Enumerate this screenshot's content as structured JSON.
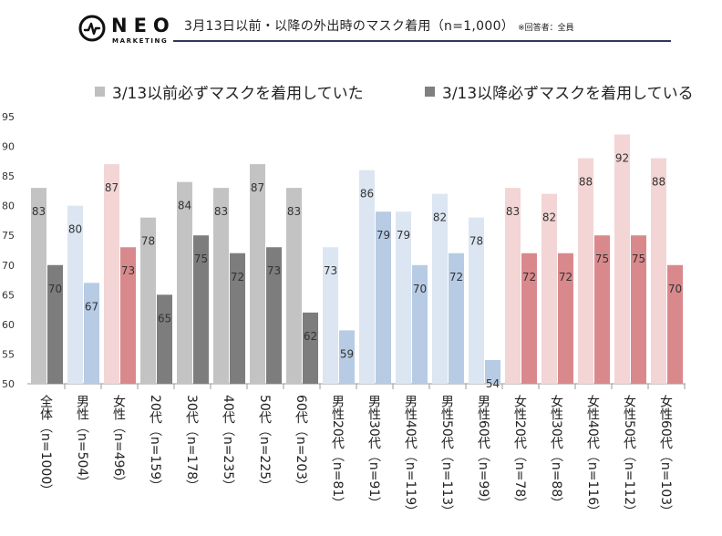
{
  "brand": {
    "name": "NEO",
    "sub": "MARKETING"
  },
  "header": {
    "title": "3月13日以前・以降の外出時のマスク着用（n=1,000）",
    "note": "※回答者：全員"
  },
  "colors": {
    "before": [
      "#c3c3c3",
      "#dce6f2",
      "#f3d5d5"
    ],
    "after": [
      "#7d7d7d",
      "#b7cbe4",
      "#d9898c"
    ],
    "legend_before": "#bfbfbf",
    "legend_after": "#7f7f7f",
    "header_rule": "#2b3a5c"
  },
  "chart_data": {
    "type": "bar",
    "ylim": [
      50,
      95
    ],
    "yticks": [
      50,
      55,
      60,
      65,
      70,
      75,
      80,
      85,
      90,
      95
    ],
    "legend_position": "top",
    "grid": false,
    "categories": [
      "全体（n=1000）",
      "男性（n=504）",
      "女性（n=496）",
      "20代（n=159）",
      "30代（n=178）",
      "40代（n=235）",
      "50代（n=225）",
      "60代（n=203）",
      "男性20代（n=81）",
      "男性30代（n=91）",
      "男性40代（n=119）",
      "男性50代（n=113）",
      "男性60代（n=99）",
      "女性20代（n=78）",
      "女性30代（n=88）",
      "女性40代（n=116）",
      "女性50代（n=112）",
      "女性60代（n=103）"
    ],
    "category_groups": [
      0,
      1,
      2,
      0,
      0,
      0,
      0,
      0,
      1,
      1,
      1,
      1,
      1,
      2,
      2,
      2,
      2,
      2
    ],
    "series": [
      {
        "name": "3/13以前必ずマスクを着用していた",
        "values": [
          83,
          80,
          87,
          78,
          84,
          83,
          87,
          83,
          73,
          86,
          79,
          82,
          78,
          83,
          82,
          88,
          92,
          88
        ]
      },
      {
        "name": "3/13以降必ずマスクを着用している",
        "values": [
          70,
          67,
          73,
          65,
          75,
          72,
          73,
          62,
          59,
          79,
          70,
          72,
          54,
          72,
          72,
          75,
          75,
          70
        ]
      }
    ]
  }
}
